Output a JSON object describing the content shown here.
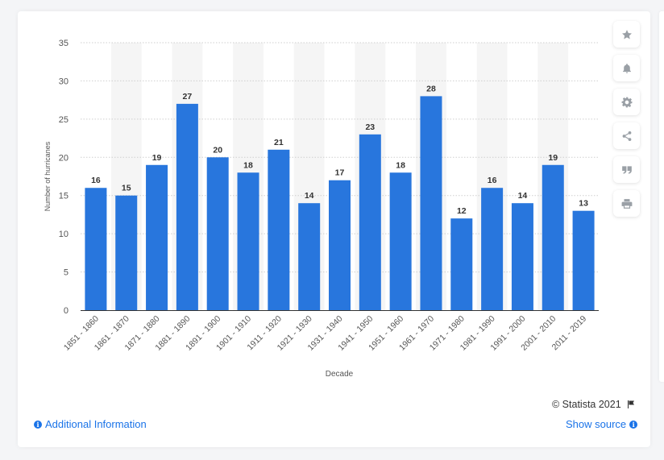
{
  "colors": {
    "bar": "#2876dd",
    "link": "#1a73e8",
    "icon": "#9aa0a6",
    "grid": "#cfcfcf",
    "band": "#f5f5f5"
  },
  "toolbar": {
    "buttons": [
      {
        "id": "favorite",
        "icon": "star-icon"
      },
      {
        "id": "notify",
        "icon": "bell-icon"
      },
      {
        "id": "settings",
        "icon": "gear-icon"
      },
      {
        "id": "share",
        "icon": "share-icon"
      },
      {
        "id": "cite",
        "icon": "quote-icon"
      },
      {
        "id": "print",
        "icon": "print-icon"
      }
    ]
  },
  "footer": {
    "copyright": "© Statista 2021",
    "additional_info": "Additional Information",
    "show_source": "Show source"
  },
  "chart_data": {
    "type": "bar",
    "title": "",
    "xlabel": "Decade",
    "ylabel": "Number of hurricanes",
    "ylim": [
      0,
      35
    ],
    "yticks": [
      0,
      5,
      10,
      15,
      20,
      25,
      30,
      35
    ],
    "grid": true,
    "categories": [
      "1851 - 1860",
      "1861 - 1870",
      "1871 - 1880",
      "1881 - 1890",
      "1891 - 1900",
      "1901 - 1910",
      "1911 - 1920",
      "1921 - 1930",
      "1931 - 1940",
      "1941 - 1950",
      "1951 - 1960",
      "1961 - 1970",
      "1971 - 1980",
      "1981 - 1990",
      "1991 - 2000",
      "2001 - 2010",
      "2011 - 2019"
    ],
    "values": [
      16,
      15,
      19,
      27,
      20,
      18,
      21,
      14,
      17,
      23,
      18,
      28,
      12,
      16,
      14,
      19,
      13
    ]
  }
}
